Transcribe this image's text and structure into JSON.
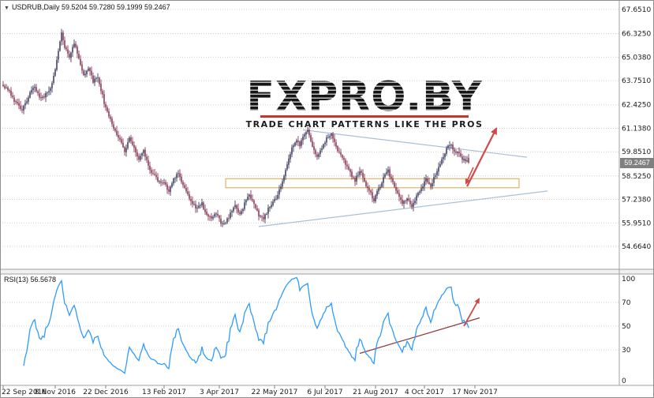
{
  "header": {
    "marker_icon": "▼",
    "symbol_line": "USDRUB,Daily 59.5204 59.7280 59.1999 59.2467"
  },
  "watermark": {
    "logo": "FXPRO.BY",
    "tagline": "TRADE CHART PATTERNS LIKE THE PROS",
    "rule_color": "#c0392b"
  },
  "price_scale": {
    "current_tag": "59.2467",
    "tag_bg": "#808080"
  },
  "rsi": {
    "label": "RSI(13) 56.5678",
    "value": 56.5678,
    "period": 13
  },
  "colors": {
    "up_candle": "#26264f",
    "down_candle": "#7c1f3e",
    "grid": "#cfcfcf",
    "axis_text": "#1a1a1a",
    "rsi_line": "#2e9bff",
    "trendline": "#a9c0d6",
    "zone": "#dba54e",
    "arrow": "#cf4a4a",
    "rsi_trend": "#8f3838",
    "frame": "#8f8f8f",
    "separator_fill": "#f0f0f0"
  },
  "chart_data": [
    {
      "type": "candlestick",
      "symbol": "USDRUB",
      "timeframe": "Daily",
      "current_bar": {
        "open": 59.5204,
        "high": 59.728,
        "low": 59.1999,
        "close": 59.2467
      },
      "y_ticks": [
        "67.6510",
        "66.3250",
        "65.0380",
        "63.7510",
        "62.4250",
        "61.1380",
        "59.8510",
        "58.5250",
        "57.2380",
        "55.9510",
        "54.6640"
      ],
      "x_ticks": [
        {
          "label": "22 Sep 2016",
          "bar": 0
        },
        {
          "label": "8 Nov 2016",
          "bar": 33
        },
        {
          "label": "22 Dec 2016",
          "bar": 65
        },
        {
          "label": "13 Feb 2017",
          "bar": 102
        },
        {
          "label": "3 Apr 2017",
          "bar": 137
        },
        {
          "label": "22 May 2017",
          "bar": 172
        },
        {
          "label": "6 Jul 2017",
          "bar": 204
        },
        {
          "label": "21 Aug 2017",
          "bar": 236
        },
        {
          "label": "4 Oct 2017",
          "bar": 267
        },
        {
          "label": "17 Nov 2017",
          "bar": 299
        }
      ],
      "total_bars": 296,
      "noise_seed": 42,
      "close_anchors": [
        [
          0,
          63.5
        ],
        [
          4,
          63.2
        ],
        [
          8,
          62.5
        ],
        [
          12,
          62.1
        ],
        [
          16,
          62.9
        ],
        [
          20,
          63.4
        ],
        [
          24,
          62.7
        ],
        [
          28,
          63.1
        ],
        [
          31,
          63.6
        ],
        [
          33,
          64.3
        ],
        [
          35,
          65.4
        ],
        [
          37,
          66.35
        ],
        [
          39,
          65.5
        ],
        [
          42,
          65.1
        ],
        [
          45,
          65.85
        ],
        [
          48,
          64.9
        ],
        [
          51,
          64.1
        ],
        [
          54,
          64.45
        ],
        [
          57,
          63.7
        ],
        [
          60,
          63.95
        ],
        [
          63,
          62.9
        ],
        [
          65,
          62.2
        ],
        [
          68,
          61.6
        ],
        [
          71,
          61.0
        ],
        [
          74,
          60.5
        ],
        [
          77,
          59.9
        ],
        [
          80,
          60.55
        ],
        [
          83,
          60.0
        ],
        [
          86,
          59.5
        ],
        [
          89,
          59.85
        ],
        [
          92,
          59.1
        ],
        [
          95,
          58.6
        ],
        [
          98,
          58.3
        ],
        [
          102,
          58.1
        ],
        [
          105,
          57.7
        ],
        [
          108,
          58.4
        ],
        [
          111,
          58.7
        ],
        [
          114,
          58.0
        ],
        [
          117,
          57.5
        ],
        [
          120,
          57.0
        ],
        [
          123,
          56.7
        ],
        [
          126,
          57.0
        ],
        [
          129,
          56.4
        ],
        [
          132,
          56.1
        ],
        [
          135,
          56.5
        ],
        [
          138,
          56.0
        ],
        [
          141,
          55.9
        ],
        [
          144,
          56.5
        ],
        [
          147,
          56.9
        ],
        [
          150,
          56.4
        ],
        [
          153,
          57.0
        ],
        [
          156,
          57.45
        ],
        [
          159,
          56.9
        ],
        [
          162,
          56.4
        ],
        [
          165,
          56.2
        ],
        [
          168,
          56.7
        ],
        [
          171,
          57.1
        ],
        [
          174,
          57.5
        ],
        [
          177,
          58.3
        ],
        [
          180,
          59.2
        ],
        [
          183,
          60.0
        ],
        [
          186,
          60.5
        ],
        [
          188,
          60.2
        ],
        [
          191,
          60.8
        ],
        [
          193,
          61.0
        ],
        [
          196,
          60.2
        ],
        [
          199,
          59.6
        ],
        [
          202,
          60.0
        ],
        [
          205,
          60.6
        ],
        [
          208,
          60.8
        ],
        [
          211,
          60.1
        ],
        [
          214,
          59.6
        ],
        [
          217,
          59.2
        ],
        [
          220,
          58.7
        ],
        [
          223,
          58.3
        ],
        [
          226,
          58.8
        ],
        [
          229,
          58.2
        ],
        [
          232,
          57.7
        ],
        [
          235,
          57.2
        ],
        [
          238,
          57.8
        ],
        [
          241,
          58.4
        ],
        [
          244,
          58.8
        ],
        [
          247,
          58.1
        ],
        [
          250,
          57.5
        ],
        [
          253,
          57.0
        ],
        [
          256,
          57.3
        ],
        [
          259,
          56.9
        ],
        [
          262,
          57.4
        ],
        [
          265,
          57.9
        ],
        [
          268,
          58.3
        ],
        [
          271,
          58.0
        ],
        [
          274,
          58.6
        ],
        [
          277,
          59.2
        ],
        [
          280,
          59.8
        ],
        [
          283,
          60.3
        ],
        [
          286,
          59.9
        ],
        [
          289,
          59.7
        ],
        [
          292,
          59.4
        ],
        [
          295,
          59.25
        ]
      ],
      "annotations": {
        "resistance_zone": {
          "bar1": 141,
          "bar2": 327,
          "price_top": 58.38,
          "price_bottom": 57.88
        },
        "trendline_down": {
          "bar1": 190,
          "price1": 61.05,
          "bar2": 332,
          "price2": 59.55
        },
        "trendline_up": {
          "bar1": 162,
          "price1": 55.75,
          "bar2": 345,
          "price2": 57.7
        },
        "arrow_pullback": {
          "bar1": 298,
          "price1": 59.0,
          "bar2": 293,
          "price2": 58.05
        },
        "arrow_projection": {
          "bar1": 294,
          "price1": 57.95,
          "bar2": 313,
          "price2": 61.2
        }
      }
    },
    {
      "type": "line",
      "name": "RSI",
      "period": 13,
      "last_value": 56.5678,
      "y_ticks": [
        "100",
        "70",
        "50",
        "30",
        "0"
      ],
      "grid_levels": [
        70,
        50,
        30
      ],
      "annotations": {
        "trendline": {
          "bar1": 226,
          "value1": 27,
          "bar2": 302,
          "value2": 57
        },
        "arrow": {
          "bar1": 292,
          "value1": 50,
          "bar2": 302,
          "value2": 74
        }
      }
    }
  ]
}
